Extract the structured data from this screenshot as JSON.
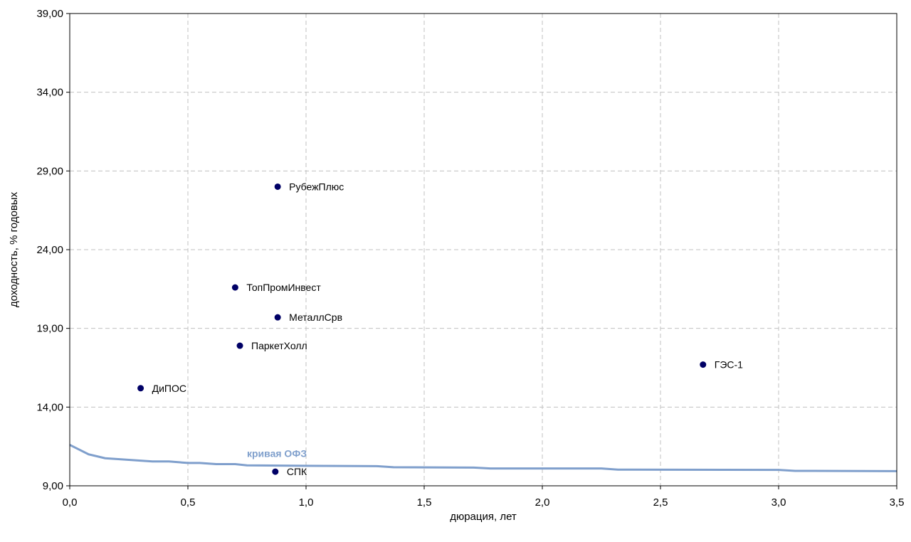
{
  "chart_data": {
    "type": "scatter",
    "xlabel": "дюрация, лет",
    "ylabel": "доходность, % годовых",
    "xlim": [
      0,
      3.5
    ],
    "ylim": [
      9,
      39
    ],
    "x_ticks": [
      "0,0",
      "0,5",
      "1,0",
      "1,5",
      "2,0",
      "2,5",
      "3,0",
      "3,5"
    ],
    "y_ticks": [
      "9,00",
      "14,00",
      "19,00",
      "24,00",
      "29,00",
      "34,00",
      "39,00"
    ],
    "grid": true,
    "point_color": "#000066",
    "series": [
      {
        "type": "scatter",
        "points": [
          {
            "label": "РубежПлюс",
            "x": 0.88,
            "y": 28.0
          },
          {
            "label": "ТопПромИнвест",
            "x": 0.7,
            "y": 21.6
          },
          {
            "label": "МеталлСрв",
            "x": 0.88,
            "y": 19.7
          },
          {
            "label": "ПаркетХолл",
            "x": 0.72,
            "y": 17.9
          },
          {
            "label": "ДиПОС",
            "x": 0.3,
            "y": 15.2
          },
          {
            "label": "ГЭС-1",
            "x": 2.68,
            "y": 16.7
          },
          {
            "label": "СПК",
            "x": 0.87,
            "y": 9.9
          }
        ]
      },
      {
        "name": "кривая ОФЗ",
        "type": "line",
        "color": "#7f9fcc",
        "x": [
          0.0,
          0.08,
          0.15,
          0.25,
          0.35,
          0.42,
          0.5,
          0.55,
          0.62,
          0.7,
          0.75,
          1.0,
          1.3,
          1.37,
          1.71,
          1.78,
          2.25,
          2.32,
          3.0,
          3.07,
          3.5
        ],
        "y": [
          11.6,
          11.0,
          10.75,
          10.65,
          10.55,
          10.55,
          10.45,
          10.45,
          10.38,
          10.38,
          10.3,
          10.27,
          10.25,
          10.18,
          10.16,
          10.1,
          10.1,
          10.03,
          10.01,
          9.95,
          9.93
        ]
      }
    ]
  }
}
